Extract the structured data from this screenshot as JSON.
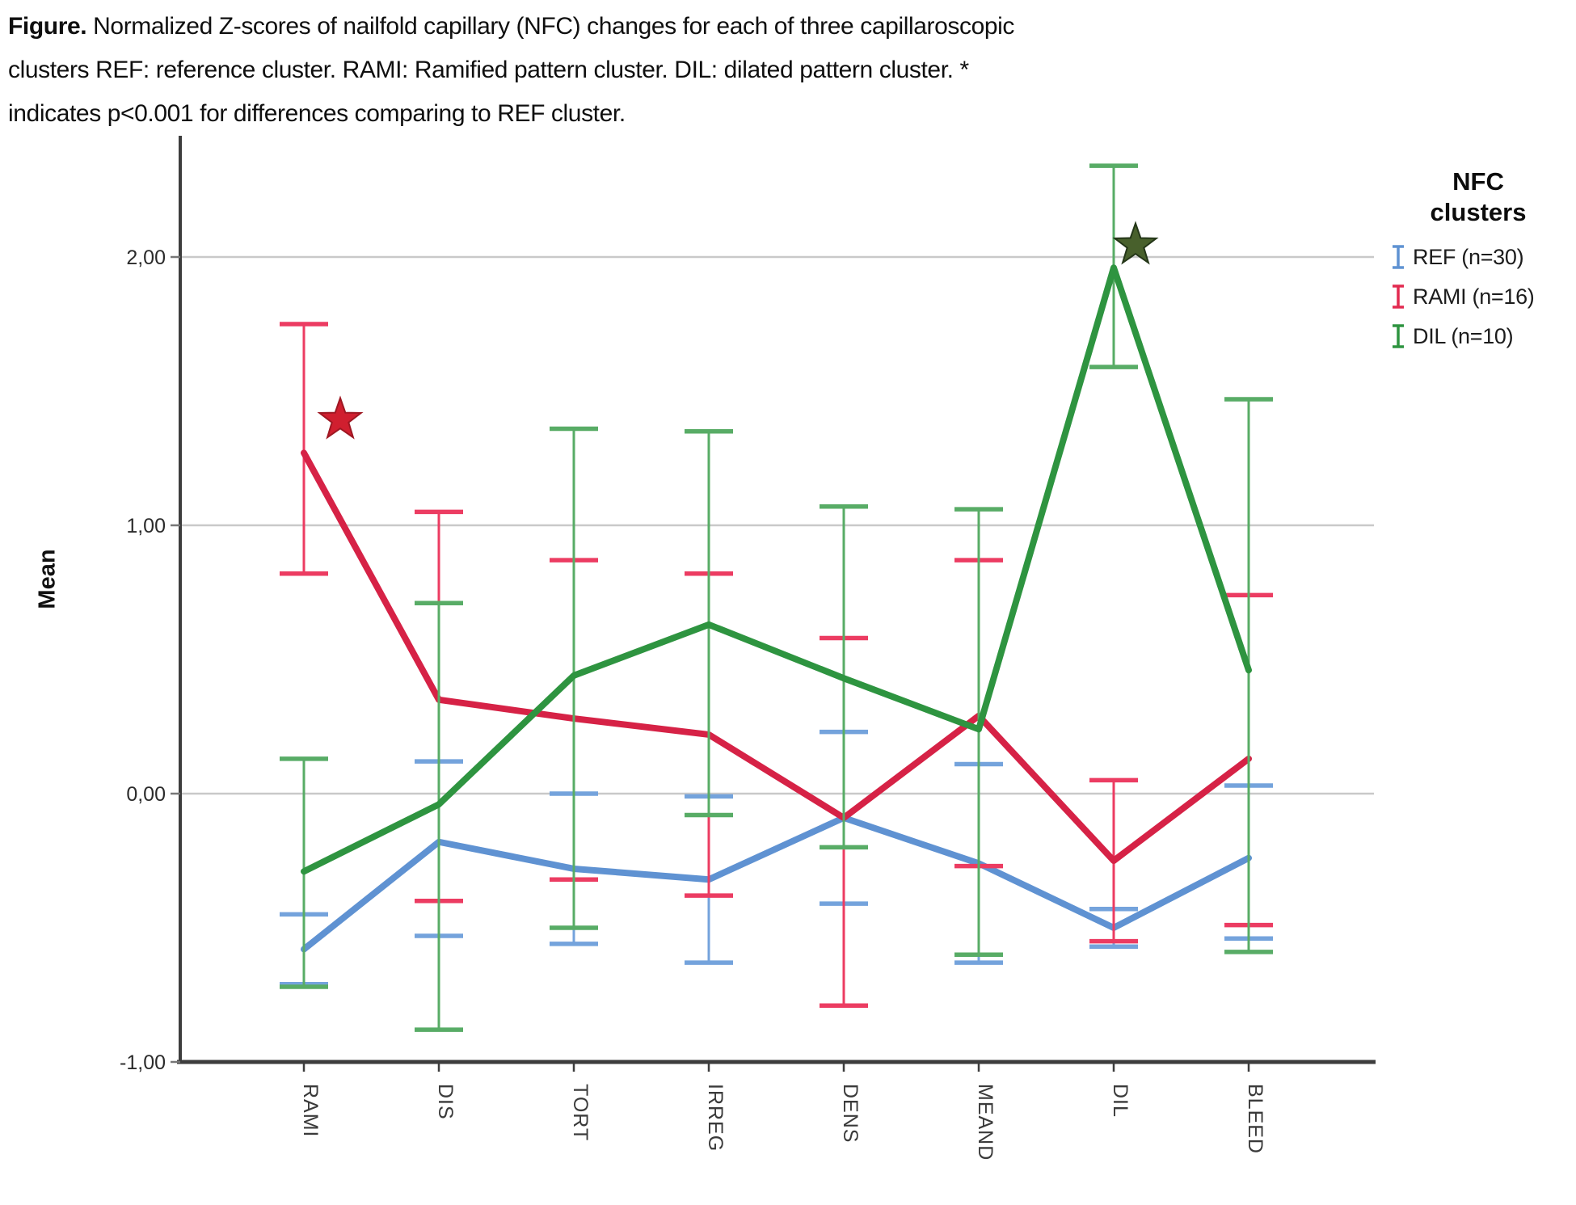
{
  "figure_caption": {
    "label": "Figure.",
    "lines": [
      "Normalized Z-scores of nailfold capillary (NFC) changes for each of three capillaroscopic",
      "clusters REF: reference cluster. RAMI: Ramified pattern cluster. DIL: dilated pattern cluster. *",
      "indicates p<0.001 for differences comparing to REF cluster."
    ]
  },
  "axes": {
    "y_title": "Mean",
    "y_ticks": [
      {
        "value": 2,
        "label": "2,00"
      },
      {
        "value": 1,
        "label": "1,00"
      },
      {
        "value": 0,
        "label": "0,00"
      },
      {
        "value": -1,
        "label": "-1,00"
      }
    ],
    "x_categories": [
      "RAMI",
      "DIS",
      "TORT",
      "IRREG",
      "DENS",
      "MEAND",
      "DIL",
      "BLEED"
    ]
  },
  "legend": {
    "title": "NFC\nclusters",
    "items": [
      {
        "label": "REF (n=30)",
        "color": "#5f92d2"
      },
      {
        "label": "RAMI (n=16)",
        "color": "#e22a50"
      },
      {
        "label": "DIL (n=10)",
        "color": "#2e9440"
      }
    ]
  },
  "chart_data": {
    "type": "line",
    "title": "",
    "xlabel": "",
    "ylabel": "Mean",
    "ylim": [
      -1.0,
      2.45
    ],
    "grid": true,
    "gridline_values": [
      0,
      1,
      2
    ],
    "legend_position": "right",
    "x_categories": [
      "RAMI",
      "DIS",
      "TORT",
      "IRREG",
      "DENS",
      "MEAND",
      "DIL",
      "BLEED"
    ],
    "series": [
      {
        "name": "REF (n=30)",
        "color": "#5f92d2",
        "ci_color": "#74a3dc",
        "means": [
          -0.58,
          -0.18,
          -0.28,
          -0.32,
          -0.09,
          -0.26,
          -0.5,
          -0.24
        ],
        "ci_low": [
          -0.71,
          -0.53,
          -0.56,
          -0.63,
          -0.41,
          -0.63,
          -0.57,
          -0.54
        ],
        "ci_high": [
          -0.45,
          0.12,
          0.0,
          -0.01,
          0.23,
          0.11,
          -0.43,
          0.03
        ]
      },
      {
        "name": "RAMI (n=16)",
        "color": "#d62246",
        "ci_color": "#ec3c62",
        "means": [
          1.27,
          0.35,
          0.28,
          0.22,
          -0.09,
          0.29,
          -0.25,
          0.13
        ],
        "ci_low": [
          0.82,
          -0.4,
          -0.32,
          -0.38,
          -0.79,
          -0.27,
          -0.55,
          -0.49
        ],
        "ci_high": [
          1.75,
          1.05,
          0.87,
          0.82,
          0.58,
          0.87,
          0.05,
          0.74
        ],
        "star": {
          "category": "RAMI",
          "meaning": "p<0.001 vs REF",
          "fill": "#d01f2f",
          "outline": "#9e1722",
          "dx": 45,
          "dy": -41
        }
      },
      {
        "name": "DIL (n=10)",
        "color": "#2e9440",
        "ci_color": "#58ac66",
        "means": [
          -0.29,
          -0.04,
          0.44,
          0.63,
          0.43,
          0.24,
          1.96,
          0.46
        ],
        "ci_low": [
          -0.72,
          -0.88,
          -0.5,
          -0.08,
          -0.2,
          -0.6,
          1.59,
          -0.59
        ],
        "ci_high": [
          0.13,
          0.71,
          1.36,
          1.35,
          1.07,
          1.06,
          2.34,
          1.47
        ],
        "star": {
          "category": "DIL",
          "meaning": "p<0.001 vs REF",
          "fill": "#48602c",
          "outline": "#243618",
          "dx": 27,
          "dy": -28
        }
      }
    ]
  },
  "colors": {
    "gridline": "#c9c9c9",
    "axis": "#3d3d3d",
    "tick": "#777777",
    "tick_label": "#2b2b2b",
    "x_label": "#3a3a3a"
  }
}
